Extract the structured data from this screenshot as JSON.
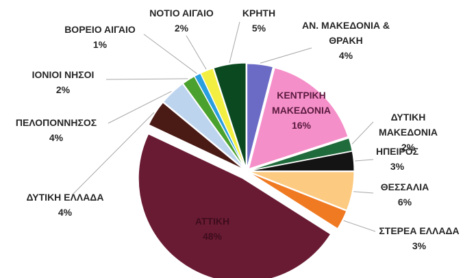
{
  "chart_data": {
    "type": "pie",
    "categories": [
      "ΑΝ. ΜΑΚΕΔΟΝΙΑ & ΘΡΑΚΗ",
      "ΚΕΝΤΡΙΚΗ ΜΑΚΕΔΟΝΙΑ",
      "ΔΥΤΙΚΗ ΜΑΚΕΔΟΝΙΑ",
      "ΗΠΕΙΡΟΣ",
      "ΘΕΣΣΑΛΙΑ",
      "ΣΤΕΡΕΑ ΕΛΛΑΔΑ",
      "ΑΤΤΙΚΗ",
      "ΔΥΤΙΚΗ ΕΛΛΑΔΑ",
      "ΠΕΛΟΠΟΝΝΗΣΟΣ",
      "ΙΟΝΙΟΙ ΝΗΣΟΙ",
      "ΒΟΡΕΙΟ ΑΙΓΑΙΟ",
      "ΝΟΤΙΟ ΑΙΓΑΙΟ",
      "ΚΡΗΤΗ"
    ],
    "values": [
      4,
      16,
      2,
      3,
      6,
      3,
      48,
      4,
      4,
      2,
      1,
      2,
      5
    ],
    "value_labels": [
      "4%",
      "16%",
      "2%",
      "3%",
      "6%",
      "3%",
      "48%",
      "4%",
      "4%",
      "2%",
      "1%",
      "2%",
      "5%"
    ],
    "colors": [
      "#6b6bc6",
      "#f58fc9",
      "#1f6b3b",
      "#141414",
      "#fcca80",
      "#f07a22",
      "#6a1b34",
      "#4a1a15",
      "#bdd4ef",
      "#4ba12e",
      "#2a9fe0",
      "#f3ef42",
      "#0b4a21"
    ]
  }
}
